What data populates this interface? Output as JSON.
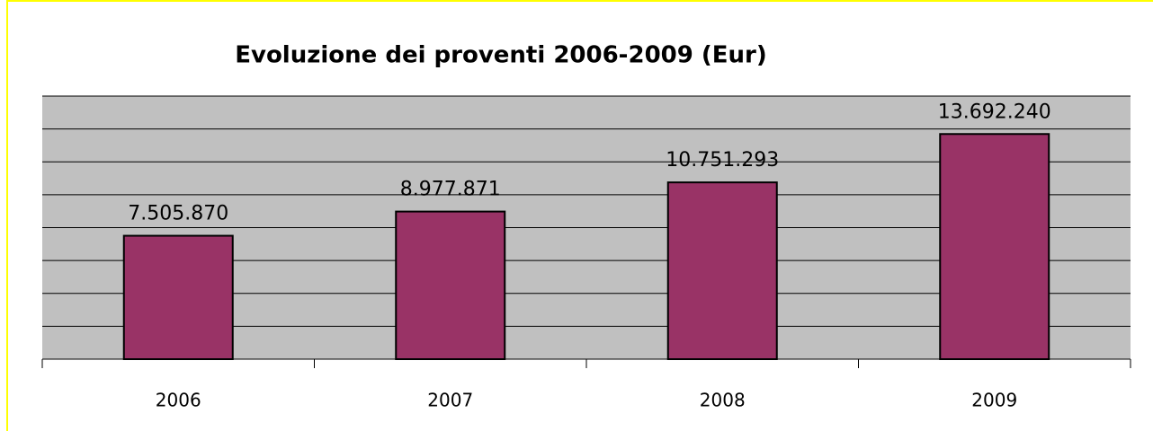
{
  "chart_data": {
    "type": "bar",
    "title": "Evoluzione dei proventi 2006-2009 (Eur)",
    "categories": [
      "2006",
      "2007",
      "2008",
      "2009"
    ],
    "values": [
      7505870,
      8977871,
      10751293,
      13692240
    ],
    "value_labels": [
      "7.505.870",
      "8.977.871",
      "10.751.293",
      "13.692.240"
    ],
    "color": "#993366",
    "ylim": [
      0,
      16000000
    ],
    "yticks": [
      0,
      2000000,
      4000000,
      6000000,
      8000000,
      10000000,
      12000000,
      14000000,
      16000000
    ],
    "grid": true
  }
}
